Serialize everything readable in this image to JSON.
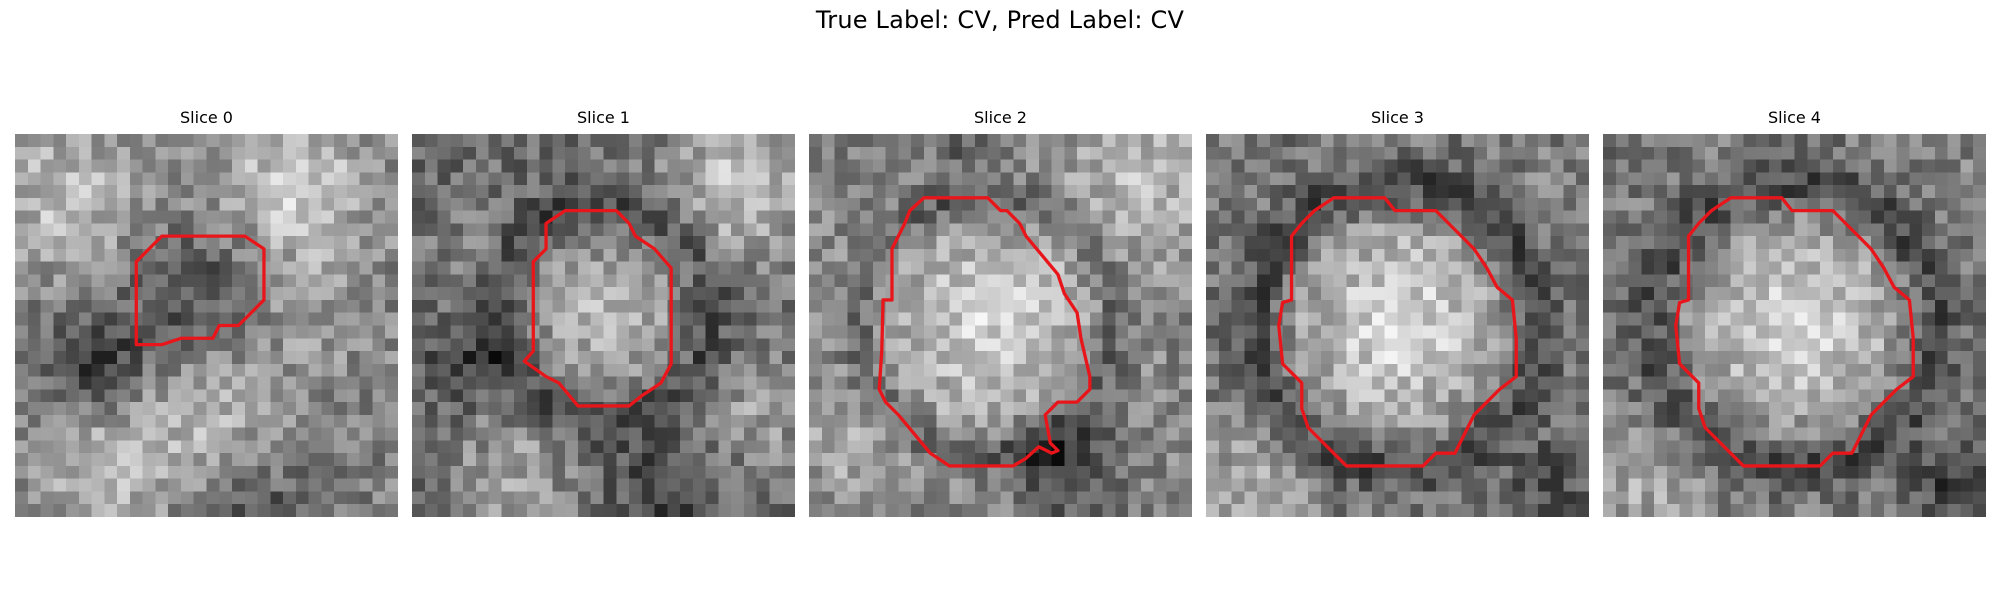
{
  "figure": {
    "title": "True Label: CV, Pred Label: CV"
  },
  "panels": [
    {
      "title": "Slice 0",
      "outline_color": "#e8161b"
    },
    {
      "title": "Slice 1",
      "outline_color": "#e8161b"
    },
    {
      "title": "Slice 2",
      "outline_color": "#e8161b"
    },
    {
      "title": "Slice 3",
      "outline_color": "#e8161b"
    },
    {
      "title": "Slice 4",
      "outline_color": "#e8161b"
    }
  ]
}
